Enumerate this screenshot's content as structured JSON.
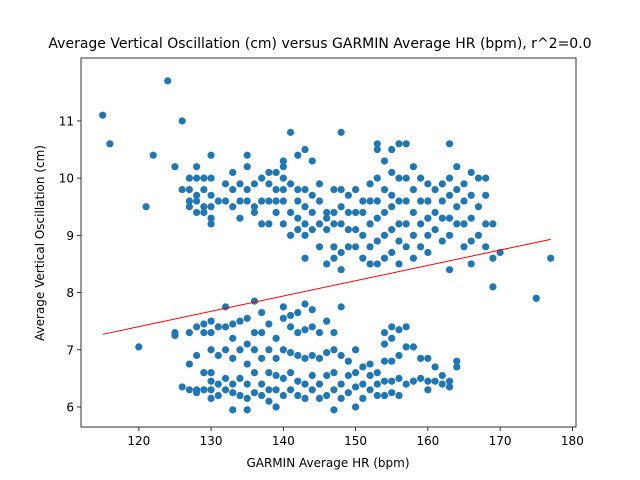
{
  "chart_data": {
    "type": "scatter",
    "title": "Average Vertical Oscillation (cm) versus GARMIN Average HR (bpm), r^2=0.0",
    "xlabel": "GARMIN Average HR (bpm)",
    "ylabel": "Average Vertical Oscillation (cm)",
    "xlim": [
      112,
      180.5
    ],
    "ylim": [
      5.65,
      12.1
    ],
    "xticks": [
      120,
      130,
      140,
      150,
      160,
      170,
      180
    ],
    "yticks": [
      6,
      7,
      8,
      9,
      10,
      11
    ],
    "grid": false,
    "point_color": "#1f77b4",
    "fit_line_color": "#ff0000",
    "fit_line": {
      "x": [
        115,
        177
      ],
      "y": [
        7.27,
        8.93
      ]
    },
    "points": [
      [
        115,
        11.1
      ],
      [
        116,
        10.6
      ],
      [
        121,
        9.5
      ],
      [
        122,
        10.4
      ],
      [
        124,
        11.7
      ],
      [
        125,
        10.2
      ],
      [
        126,
        11.0
      ],
      [
        120,
        7.05
      ],
      [
        125,
        7.3
      ],
      [
        125,
        7.25
      ],
      [
        127,
        6.75
      ],
      [
        169,
        8.1
      ],
      [
        170,
        8.7
      ],
      [
        175,
        7.9
      ],
      [
        177,
        8.6
      ],
      [
        126,
        9.8
      ],
      [
        127,
        9.5
      ],
      [
        127,
        9.6
      ],
      [
        127,
        9.8
      ],
      [
        127,
        10.0
      ],
      [
        128,
        9.4
      ],
      [
        128,
        9.6
      ],
      [
        128,
        9.7
      ],
      [
        128,
        10.0
      ],
      [
        128,
        10.2
      ],
      [
        129,
        9.5
      ],
      [
        129,
        9.8
      ],
      [
        129,
        10.0
      ],
      [
        129,
        9.4
      ],
      [
        130,
        9.2
      ],
      [
        130,
        9.3
      ],
      [
        130,
        9.5
      ],
      [
        130,
        9.7
      ],
      [
        130,
        10.0
      ],
      [
        130,
        10.4
      ],
      [
        131,
        9.6
      ],
      [
        132,
        9.6
      ],
      [
        132,
        9.9
      ],
      [
        133,
        9.5
      ],
      [
        133,
        9.8
      ],
      [
        133,
        10.1
      ],
      [
        134,
        9.3
      ],
      [
        134,
        9.6
      ],
      [
        134,
        9.9
      ],
      [
        135,
        9.6
      ],
      [
        135,
        9.8
      ],
      [
        135,
        10.4
      ],
      [
        135,
        10.2
      ],
      [
        136,
        9.4
      ],
      [
        136,
        9.5
      ],
      [
        136,
        9.9
      ],
      [
        137,
        9.2
      ],
      [
        137,
        9.6
      ],
      [
        137,
        10.0
      ],
      [
        138,
        9.2
      ],
      [
        138,
        9.6
      ],
      [
        138,
        9.9
      ],
      [
        138,
        10.1
      ],
      [
        139,
        9.4
      ],
      [
        139,
        9.6
      ],
      [
        139,
        10.1
      ],
      [
        139,
        9.8
      ],
      [
        140,
        9.2
      ],
      [
        140,
        9.6
      ],
      [
        140,
        9.8
      ],
      [
        140,
        10.0
      ],
      [
        140,
        10.2
      ],
      [
        140,
        10.3
      ],
      [
        141,
        9.0
      ],
      [
        141,
        9.4
      ],
      [
        141,
        9.9
      ],
      [
        141,
        10.8
      ],
      [
        142,
        9.1
      ],
      [
        142,
        9.3
      ],
      [
        142,
        9.6
      ],
      [
        142,
        9.8
      ],
      [
        142,
        10.4
      ],
      [
        143,
        8.6
      ],
      [
        143,
        9.0
      ],
      [
        143,
        9.2
      ],
      [
        143,
        9.5
      ],
      [
        143,
        9.8
      ],
      [
        143,
        10.5
      ],
      [
        144,
        9.1
      ],
      [
        144,
        9.4
      ],
      [
        144,
        9.7
      ],
      [
        144,
        10.3
      ],
      [
        145,
        8.8
      ],
      [
        145,
        9.2
      ],
      [
        145,
        9.6
      ],
      [
        145,
        9.9
      ],
      [
        146,
        8.5
      ],
      [
        146,
        9.1
      ],
      [
        146,
        9.3
      ],
      [
        146,
        9.4
      ],
      [
        147,
        8.6
      ],
      [
        147,
        8.8
      ],
      [
        147,
        9.2
      ],
      [
        147,
        9.4
      ],
      [
        147,
        9.8
      ],
      [
        148,
        8.4
      ],
      [
        148,
        8.7
      ],
      [
        148,
        9.2
      ],
      [
        148,
        9.5
      ],
      [
        148,
        9.8
      ],
      [
        148,
        10.8
      ],
      [
        149,
        8.8
      ],
      [
        149,
        9.1
      ],
      [
        149,
        9.4
      ],
      [
        149,
        9.7
      ],
      [
        150,
        8.8
      ],
      [
        150,
        9.1
      ],
      [
        150,
        9.4
      ],
      [
        150,
        9.8
      ],
      [
        151,
        8.6
      ],
      [
        151,
        9.0
      ],
      [
        151,
        9.4
      ],
      [
        151,
        9.6
      ],
      [
        152,
        8.5
      ],
      [
        152,
        8.8
      ],
      [
        152,
        9.2
      ],
      [
        152,
        9.6
      ],
      [
        152,
        9.9
      ],
      [
        153,
        8.5
      ],
      [
        153,
        8.9
      ],
      [
        153,
        9.3
      ],
      [
        153,
        9.6
      ],
      [
        153,
        10.0
      ],
      [
        153,
        10.5
      ],
      [
        153,
        10.6
      ],
      [
        154,
        8.6
      ],
      [
        154,
        9.0
      ],
      [
        154,
        9.4
      ],
      [
        154,
        9.8
      ],
      [
        154,
        10.3
      ],
      [
        155,
        8.7
      ],
      [
        155,
        9.1
      ],
      [
        155,
        9.5
      ],
      [
        155,
        9.7
      ],
      [
        155,
        10.1
      ],
      [
        155,
        10.5
      ],
      [
        156,
        8.5
      ],
      [
        156,
        8.9
      ],
      [
        156,
        9.2
      ],
      [
        156,
        9.6
      ],
      [
        156,
        10.0
      ],
      [
        156,
        10.6
      ],
      [
        157,
        8.8
      ],
      [
        157,
        9.2
      ],
      [
        157,
        9.6
      ],
      [
        157,
        10.0
      ],
      [
        157,
        10.6
      ],
      [
        158,
        8.6
      ],
      [
        158,
        9.0
      ],
      [
        158,
        9.4
      ],
      [
        158,
        9.8
      ],
      [
        158,
        10.2
      ],
      [
        159,
        8.8
      ],
      [
        159,
        9.2
      ],
      [
        159,
        9.6
      ],
      [
        159,
        10.0
      ],
      [
        160,
        8.7
      ],
      [
        160,
        9.0
      ],
      [
        160,
        9.3
      ],
      [
        160,
        9.6
      ],
      [
        160,
        9.9
      ],
      [
        161,
        9.1
      ],
      [
        161,
        9.4
      ],
      [
        161,
        9.8
      ],
      [
        162,
        8.9
      ],
      [
        162,
        9.3
      ],
      [
        162,
        9.6
      ],
      [
        162,
        9.9
      ],
      [
        163,
        8.4
      ],
      [
        163,
        9.0
      ],
      [
        163,
        9.3
      ],
      [
        163,
        9.7
      ],
      [
        163,
        10.0
      ],
      [
        163,
        10.6
      ],
      [
        164,
        9.2
      ],
      [
        164,
        9.5
      ],
      [
        164,
        9.8
      ],
      [
        164,
        10.2
      ],
      [
        165,
        8.8
      ],
      [
        165,
        9.2
      ],
      [
        165,
        9.6
      ],
      [
        165,
        9.9
      ],
      [
        166,
        8.5
      ],
      [
        166,
        8.9
      ],
      [
        166,
        9.3
      ],
      [
        166,
        9.7
      ],
      [
        166,
        10.1
      ],
      [
        167,
        9.0
      ],
      [
        167,
        9.5
      ],
      [
        167,
        10.0
      ],
      [
        168,
        8.8
      ],
      [
        168,
        9.2
      ],
      [
        168,
        9.7
      ],
      [
        168,
        10.0
      ],
      [
        169,
        8.6
      ],
      [
        169,
        9.2
      ],
      [
        126,
        6.35
      ],
      [
        127,
        6.3
      ],
      [
        127,
        7.3
      ],
      [
        128,
        6.25
      ],
      [
        128,
        6.3
      ],
      [
        128,
        6.9
      ],
      [
        128,
        7.4
      ],
      [
        129,
        6.3
      ],
      [
        129,
        6.6
      ],
      [
        129,
        7.3
      ],
      [
        129,
        7.45
      ],
      [
        130,
        6.15
      ],
      [
        130,
        6.3
      ],
      [
        130,
        6.45
      ],
      [
        130,
        6.6
      ],
      [
        130,
        7.0
      ],
      [
        130,
        7.3
      ],
      [
        130,
        7.5
      ],
      [
        131,
        6.2
      ],
      [
        131,
        6.4
      ],
      [
        131,
        6.9
      ],
      [
        131,
        7.4
      ],
      [
        132,
        6.3
      ],
      [
        132,
        6.5
      ],
      [
        132,
        7.0
      ],
      [
        132,
        7.4
      ],
      [
        132,
        7.75
      ],
      [
        133,
        5.95
      ],
      [
        133,
        6.25
      ],
      [
        133,
        6.4
      ],
      [
        133,
        6.85
      ],
      [
        133,
        7.2
      ],
      [
        133,
        7.45
      ],
      [
        134,
        6.2
      ],
      [
        134,
        6.5
      ],
      [
        134,
        7.0
      ],
      [
        134,
        7.5
      ],
      [
        135,
        5.95
      ],
      [
        135,
        6.15
      ],
      [
        135,
        6.4
      ],
      [
        135,
        6.75
      ],
      [
        135,
        7.1
      ],
      [
        135,
        7.55
      ],
      [
        136,
        6.25
      ],
      [
        136,
        6.6
      ],
      [
        136,
        7.0
      ],
      [
        136,
        7.3
      ],
      [
        136,
        7.85
      ],
      [
        137,
        6.2
      ],
      [
        137,
        6.4
      ],
      [
        137,
        6.85
      ],
      [
        137,
        7.3
      ],
      [
        137,
        7.65
      ],
      [
        138,
        6.1
      ],
      [
        138,
        6.3
      ],
      [
        138,
        6.6
      ],
      [
        138,
        7.0
      ],
      [
        138,
        7.45
      ],
      [
        139,
        6.0
      ],
      [
        139,
        6.3
      ],
      [
        139,
        6.55
      ],
      [
        139,
        6.85
      ],
      [
        139,
        7.2
      ],
      [
        140,
        6.2
      ],
      [
        140,
        6.5
      ],
      [
        140,
        7.0
      ],
      [
        140,
        7.55
      ],
      [
        140,
        7.75
      ],
      [
        141,
        6.3
      ],
      [
        141,
        6.6
      ],
      [
        141,
        6.95
      ],
      [
        141,
        7.4
      ],
      [
        141,
        7.6
      ],
      [
        142,
        6.2
      ],
      [
        142,
        6.45
      ],
      [
        142,
        6.9
      ],
      [
        142,
        7.3
      ],
      [
        142,
        7.65
      ],
      [
        143,
        6.15
      ],
      [
        143,
        6.4
      ],
      [
        143,
        6.85
      ],
      [
        143,
        7.35
      ],
      [
        143,
        7.8
      ],
      [
        144,
        6.3
      ],
      [
        144,
        6.55
      ],
      [
        144,
        6.9
      ],
      [
        144,
        7.4
      ],
      [
        144,
        7.7
      ],
      [
        145,
        6.15
      ],
      [
        145,
        6.4
      ],
      [
        145,
        6.85
      ],
      [
        145,
        7.3
      ],
      [
        146,
        6.2
      ],
      [
        146,
        6.55
      ],
      [
        146,
        6.95
      ],
      [
        146,
        7.5
      ],
      [
        147,
        5.95
      ],
      [
        147,
        6.3
      ],
      [
        147,
        6.6
      ],
      [
        147,
        7.0
      ],
      [
        147,
        7.3
      ],
      [
        148,
        6.15
      ],
      [
        148,
        6.4
      ],
      [
        148,
        6.9
      ],
      [
        148,
        7.75
      ],
      [
        149,
        6.25
      ],
      [
        149,
        6.55
      ],
      [
        149,
        6.8
      ],
      [
        150,
        6.0
      ],
      [
        150,
        6.35
      ],
      [
        150,
        6.6
      ],
      [
        150,
        7.0
      ],
      [
        151,
        6.15
      ],
      [
        151,
        6.4
      ],
      [
        151,
        6.7
      ],
      [
        152,
        6.3
      ],
      [
        152,
        6.55
      ],
      [
        152,
        6.75
      ],
      [
        153,
        6.2
      ],
      [
        153,
        6.4
      ],
      [
        153,
        6.6
      ],
      [
        154,
        6.2
      ],
      [
        154,
        6.45
      ],
      [
        154,
        6.8
      ],
      [
        154,
        7.1
      ],
      [
        154,
        7.3
      ],
      [
        155,
        6.25
      ],
      [
        155,
        6.45
      ],
      [
        155,
        6.8
      ],
      [
        155,
        7.2
      ],
      [
        155,
        7.4
      ],
      [
        156,
        6.2
      ],
      [
        156,
        6.5
      ],
      [
        156,
        6.9
      ],
      [
        156,
        7.35
      ],
      [
        157,
        6.4
      ],
      [
        157,
        7.05
      ],
      [
        157,
        7.4
      ],
      [
        158,
        6.45
      ],
      [
        158,
        7.05
      ],
      [
        159,
        6.5
      ],
      [
        159,
        6.85
      ],
      [
        160,
        6.3
      ],
      [
        160,
        6.45
      ],
      [
        160,
        6.85
      ],
      [
        161,
        6.45
      ],
      [
        161,
        6.7
      ],
      [
        162,
        6.4
      ],
      [
        162,
        6.55
      ],
      [
        163,
        6.35
      ],
      [
        163,
        6.45
      ],
      [
        164,
        6.7
      ],
      [
        164,
        6.8
      ]
    ]
  }
}
